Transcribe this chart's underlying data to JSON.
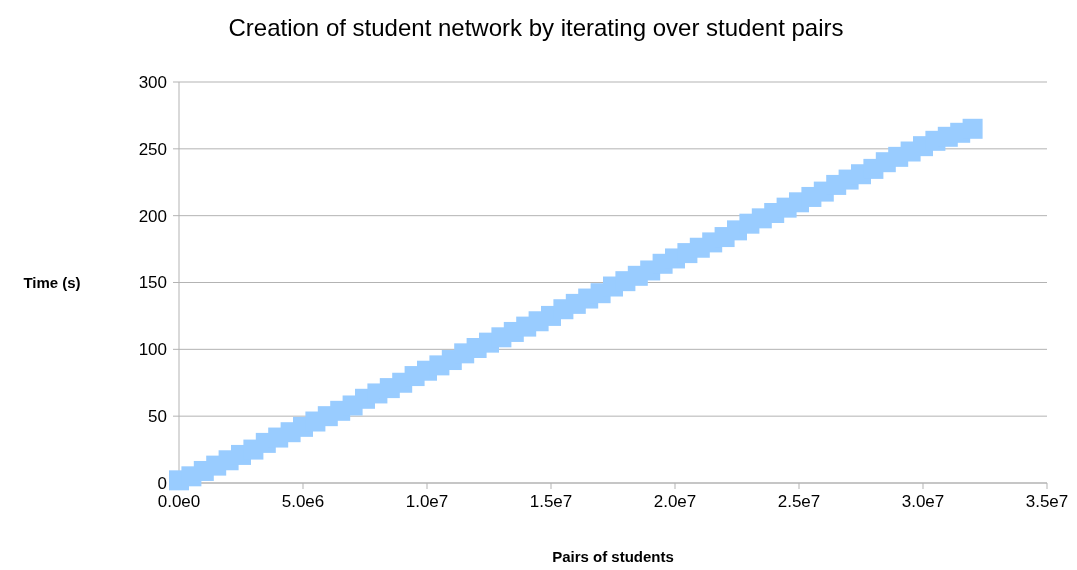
{
  "chart_data": {
    "type": "scatter",
    "title": "Creation of student network by iterating over student pairs",
    "xlabel": "Pairs of students",
    "ylabel": "Time (s)",
    "x": [
      0,
      500000,
      1000000,
      1500000,
      2000000,
      2500000,
      3000000,
      3500000,
      4000000,
      4500000,
      5000000,
      5500000,
      6000000,
      6500000,
      7000000,
      7500000,
      8000000,
      8500000,
      9000000,
      9500000,
      10000000,
      10500000,
      11000000,
      11500000,
      12000000,
      12500000,
      13000000,
      13500000,
      14000000,
      14500000,
      15000000,
      15500000,
      16000000,
      16500000,
      17000000,
      17500000,
      18000000,
      18500000,
      19000000,
      19500000,
      20000000,
      20500000,
      21000000,
      21500000,
      22000000,
      22500000,
      23000000,
      23500000,
      24000000,
      24500000,
      25000000,
      25500000,
      26000000,
      26500000,
      27000000,
      27500000,
      28000000,
      28500000,
      29000000,
      29500000,
      30000000,
      30500000,
      31000000,
      31500000,
      32000000
    ],
    "series": [
      {
        "color": "#99ccff",
        "values": [
          2,
          5,
          9,
          13,
          17,
          21,
          25,
          30,
          34,
          38,
          42,
          46,
          50,
          54,
          58,
          63,
          67,
          71,
          75,
          80,
          84,
          88,
          92,
          97,
          101,
          105,
          109,
          113,
          117,
          121,
          125,
          130,
          134,
          138,
          142,
          147,
          151,
          155,
          159,
          164,
          168,
          172,
          176,
          180,
          184,
          189,
          194,
          198,
          202,
          206,
          210,
          214,
          218,
          223,
          227,
          231,
          235,
          240,
          244,
          248,
          252,
          256,
          259,
          262,
          265
        ]
      }
    ],
    "xlim": [
      0,
      35000000
    ],
    "ylim": [
      0,
      300
    ],
    "xticks": [
      {
        "value": 0,
        "label": "0.0e0"
      },
      {
        "value": 5000000,
        "label": "5.0e6"
      },
      {
        "value": 10000000,
        "label": "1.0e7"
      },
      {
        "value": 15000000,
        "label": "1.5e7"
      },
      {
        "value": 20000000,
        "label": "2.0e7"
      },
      {
        "value": 25000000,
        "label": "2.5e7"
      },
      {
        "value": 30000000,
        "label": "3.0e7"
      },
      {
        "value": 35000000,
        "label": "3.5e7"
      }
    ],
    "yticks": [
      0,
      50,
      100,
      150,
      200,
      250,
      300
    ],
    "grid": "y",
    "marker": "square"
  }
}
